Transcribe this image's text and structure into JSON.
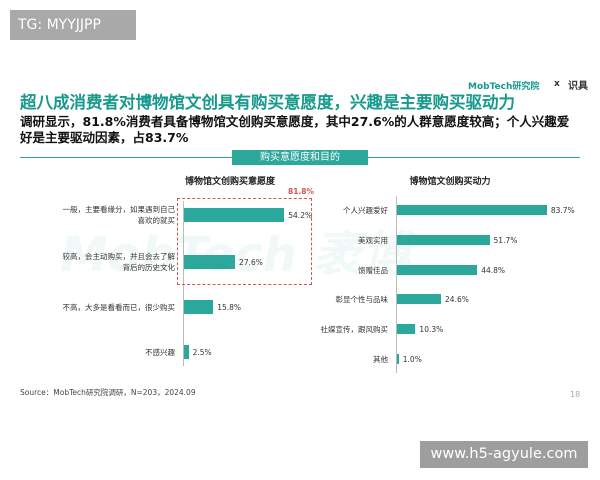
{
  "badge": "TG: MYYJJPP",
  "header": {
    "title": "超八成消费者对博物馆文创具有购买意愿度，兴趣是主要购买驱动力",
    "subtitle": "调研显示，81.8%消费者具备博物馆文创购买意愿度，其中27.6%的人群意愿度较高；个人兴趣爱好是主要驱动因素，占83.7%",
    "logo": "MobTech研究院",
    "logo_sep": "x",
    "logo_partner": "识具"
  },
  "section": "购买意愿度和目的",
  "slide_watermark": "MobTech 袤博",
  "chart_data": [
    {
      "type": "bar",
      "title": "博物馆文创购买意愿度",
      "categories": [
        "一般，主要看缘分，如果遇到自己喜欢的就买",
        "较高，会主动购买，并且会去了解背后的历史文化",
        "不高，大多是看看而已，很少购买",
        "不感兴趣"
      ],
      "values": [
        54.2,
        27.6,
        15.8,
        2.5
      ],
      "value_labels": [
        "54.2%",
        "27.6%",
        "15.8%",
        "2.5%"
      ],
      "color": "#2ba79c",
      "annotation": "81.8%"
    },
    {
      "type": "bar",
      "title": "博物馆文创购买动力",
      "categories": [
        "个人兴趣爱好",
        "美观实用",
        "馈赠佳品",
        "彰显个性与品味",
        "社媒宣传，跟风购买",
        "其他"
      ],
      "values": [
        83.7,
        51.7,
        44.8,
        24.6,
        10.3,
        1.0
      ],
      "value_labels": [
        "83.7%",
        "51.7%",
        "44.8%",
        "24.6%",
        "10.3%",
        "1.0%"
      ],
      "color": "#2ba79c"
    }
  ],
  "source": "Source：MobTech研究院调研，N=203，2024.09",
  "page_number": "18",
  "site_watermark": "www.h5-agyule.com"
}
